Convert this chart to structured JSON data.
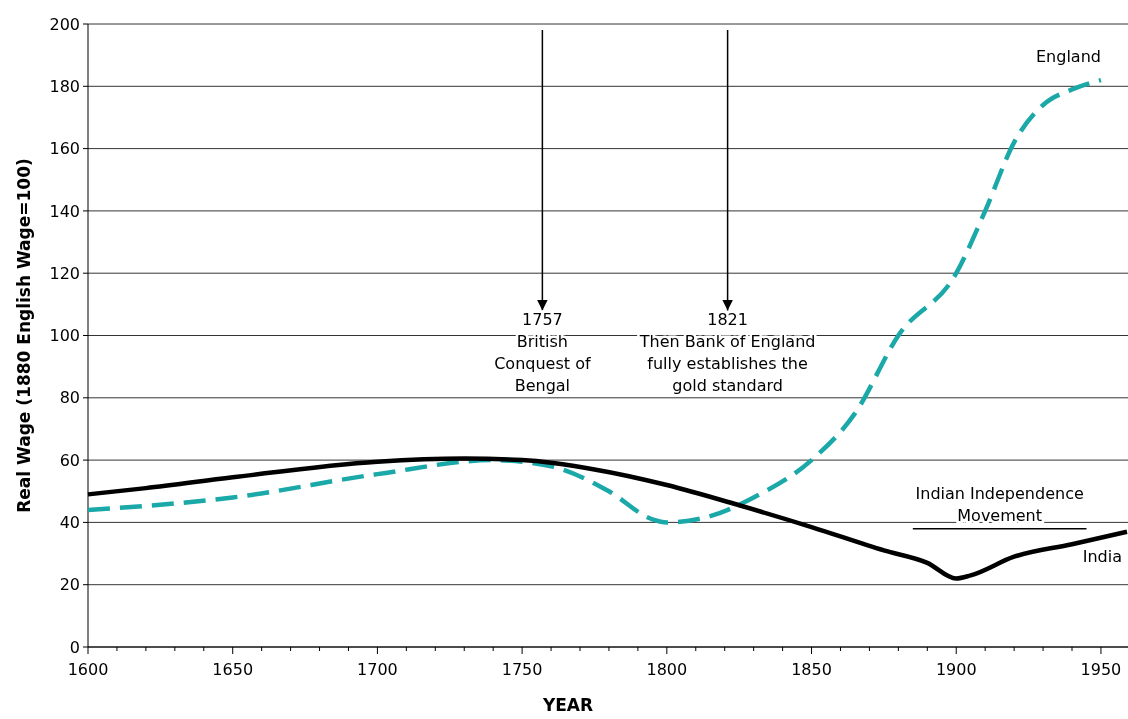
{
  "chart_data": {
    "type": "line",
    "xlabel": "YEAR",
    "ylabel": "Real Wage (1880 English Wage=100)",
    "xlim": [
      1600,
      1959
    ],
    "ylim": [
      0,
      200
    ],
    "xticks": [
      1600,
      {
        "value": 1610,
        "label": null
      },
      {
        "value": 1620,
        "label": null
      },
      {
        "value": 1630,
        "label": null
      },
      {
        "value": 1640,
        "label": null
      },
      1650,
      {
        "value": 1660,
        "label": null
      },
      {
        "value": 1670,
        "label": null
      },
      {
        "value": 1680,
        "label": null
      },
      {
        "value": 1690,
        "label": null
      },
      1700,
      {
        "value": 1710,
        "label": null
      },
      {
        "value": 1720,
        "label": null
      },
      {
        "value": 1730,
        "label": null
      },
      {
        "value": 1740,
        "label": null
      },
      1750,
      {
        "value": 1760,
        "label": null
      },
      {
        "value": 1770,
        "label": null
      },
      {
        "value": 1780,
        "label": null
      },
      {
        "value": 1790,
        "label": null
      },
      1800,
      {
        "value": 1810,
        "label": null
      },
      {
        "value": 1820,
        "label": null
      },
      {
        "value": 1830,
        "label": null
      },
      {
        "value": 1840,
        "label": null
      },
      1850,
      {
        "value": 1860,
        "label": null
      },
      {
        "value": 1870,
        "label": null
      },
      {
        "value": 1880,
        "label": null
      },
      {
        "value": 1890,
        "label": null
      },
      1900,
      {
        "value": 1910,
        "label": null
      },
      {
        "value": 1920,
        "label": null
      },
      {
        "value": 1930,
        "label": null
      },
      {
        "value": 1940,
        "label": null
      },
      1950
    ],
    "yticks": [
      0,
      20,
      40,
      60,
      80,
      100,
      120,
      140,
      160,
      180,
      200
    ],
    "grid": "y",
    "legend": false,
    "marker": "none",
    "series": [
      {
        "name": "England",
        "color": "#1aa8a8",
        "line_style": "dashed",
        "x": [
          1600,
          1650,
          1700,
          1740,
          1760,
          1780,
          1795,
          1800,
          1815,
          1830,
          1850,
          1865,
          1880,
          1900,
          1910,
          1920,
          1930,
          1940,
          1950
        ],
        "values": [
          44,
          48,
          55.5,
          60,
          58,
          50,
          41,
          40,
          42,
          48,
          60,
          75,
          100,
          120,
          140,
          162,
          174,
          179,
          182
        ]
      },
      {
        "name": "India",
        "color": "#000000",
        "line_style": "solid",
        "x": [
          1600,
          1620,
          1650,
          1700,
          1730,
          1750,
          1775,
          1800,
          1825,
          1850,
          1875,
          1890,
          1900,
          1905,
          1920,
          1940,
          1959
        ],
        "values": [
          49,
          51,
          54.5,
          59.5,
          60.5,
          60,
          57,
          52,
          45.5,
          38.5,
          31,
          27,
          22,
          23,
          29,
          33,
          37
        ]
      },
      {
        "color": "#000000",
        "line_style": "solid",
        "x": [
          1885,
          1915,
          1945
        ],
        "values": [
          38,
          38,
          38
        ]
      }
    ],
    "ref_lines": [
      {
        "axis": "x",
        "value": 1757,
        "label": "1757\nBritish\nConquest of\nBengal"
      },
      {
        "axis": "x",
        "value": 1821,
        "label": "1821\nThen Bank of England\nfully establishes the\ngold standard"
      }
    ],
    "annotations": [
      {
        "text": "Indian Independence\nMovement",
        "x": 1915,
        "y": 38
      }
    ]
  }
}
